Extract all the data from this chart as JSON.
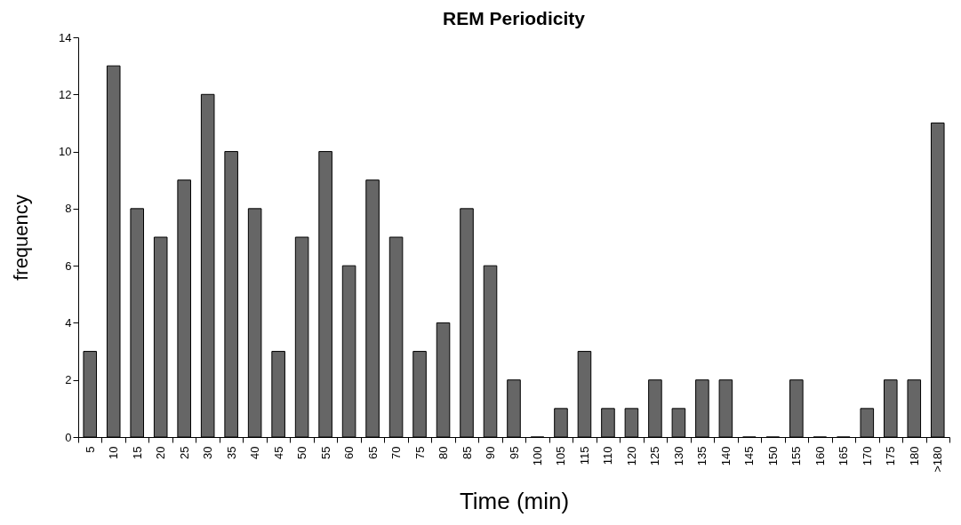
{
  "chart_data": {
    "type": "bar",
    "title": "REM Periodicity",
    "xlabel": "Time (min)",
    "ylabel": "frequency",
    "categories": [
      "5",
      "10",
      "15",
      "20",
      "25",
      "30",
      "35",
      "40",
      "45",
      "50",
      "55",
      "60",
      "65",
      "70",
      "75",
      "80",
      "85",
      "90",
      "95",
      "100",
      "105",
      "115",
      "110",
      "120",
      "125",
      "130",
      "135",
      "140",
      "145",
      "150",
      "155",
      "160",
      "165",
      "170",
      "175",
      "180",
      ">180"
    ],
    "values": [
      3,
      13,
      8,
      7,
      9,
      12,
      10,
      8,
      3,
      7,
      10,
      6,
      9,
      7,
      3,
      4,
      8,
      6,
      2,
      0,
      1,
      3,
      1,
      1,
      2,
      1,
      2,
      2,
      0,
      0,
      2,
      0,
      0,
      1,
      2,
      2,
      11
    ],
    "color": "#666666",
    "ylim": [
      0,
      14
    ],
    "yticks": [
      0,
      2,
      4,
      6,
      8,
      10,
      12,
      14
    ],
    "grid": false
  }
}
